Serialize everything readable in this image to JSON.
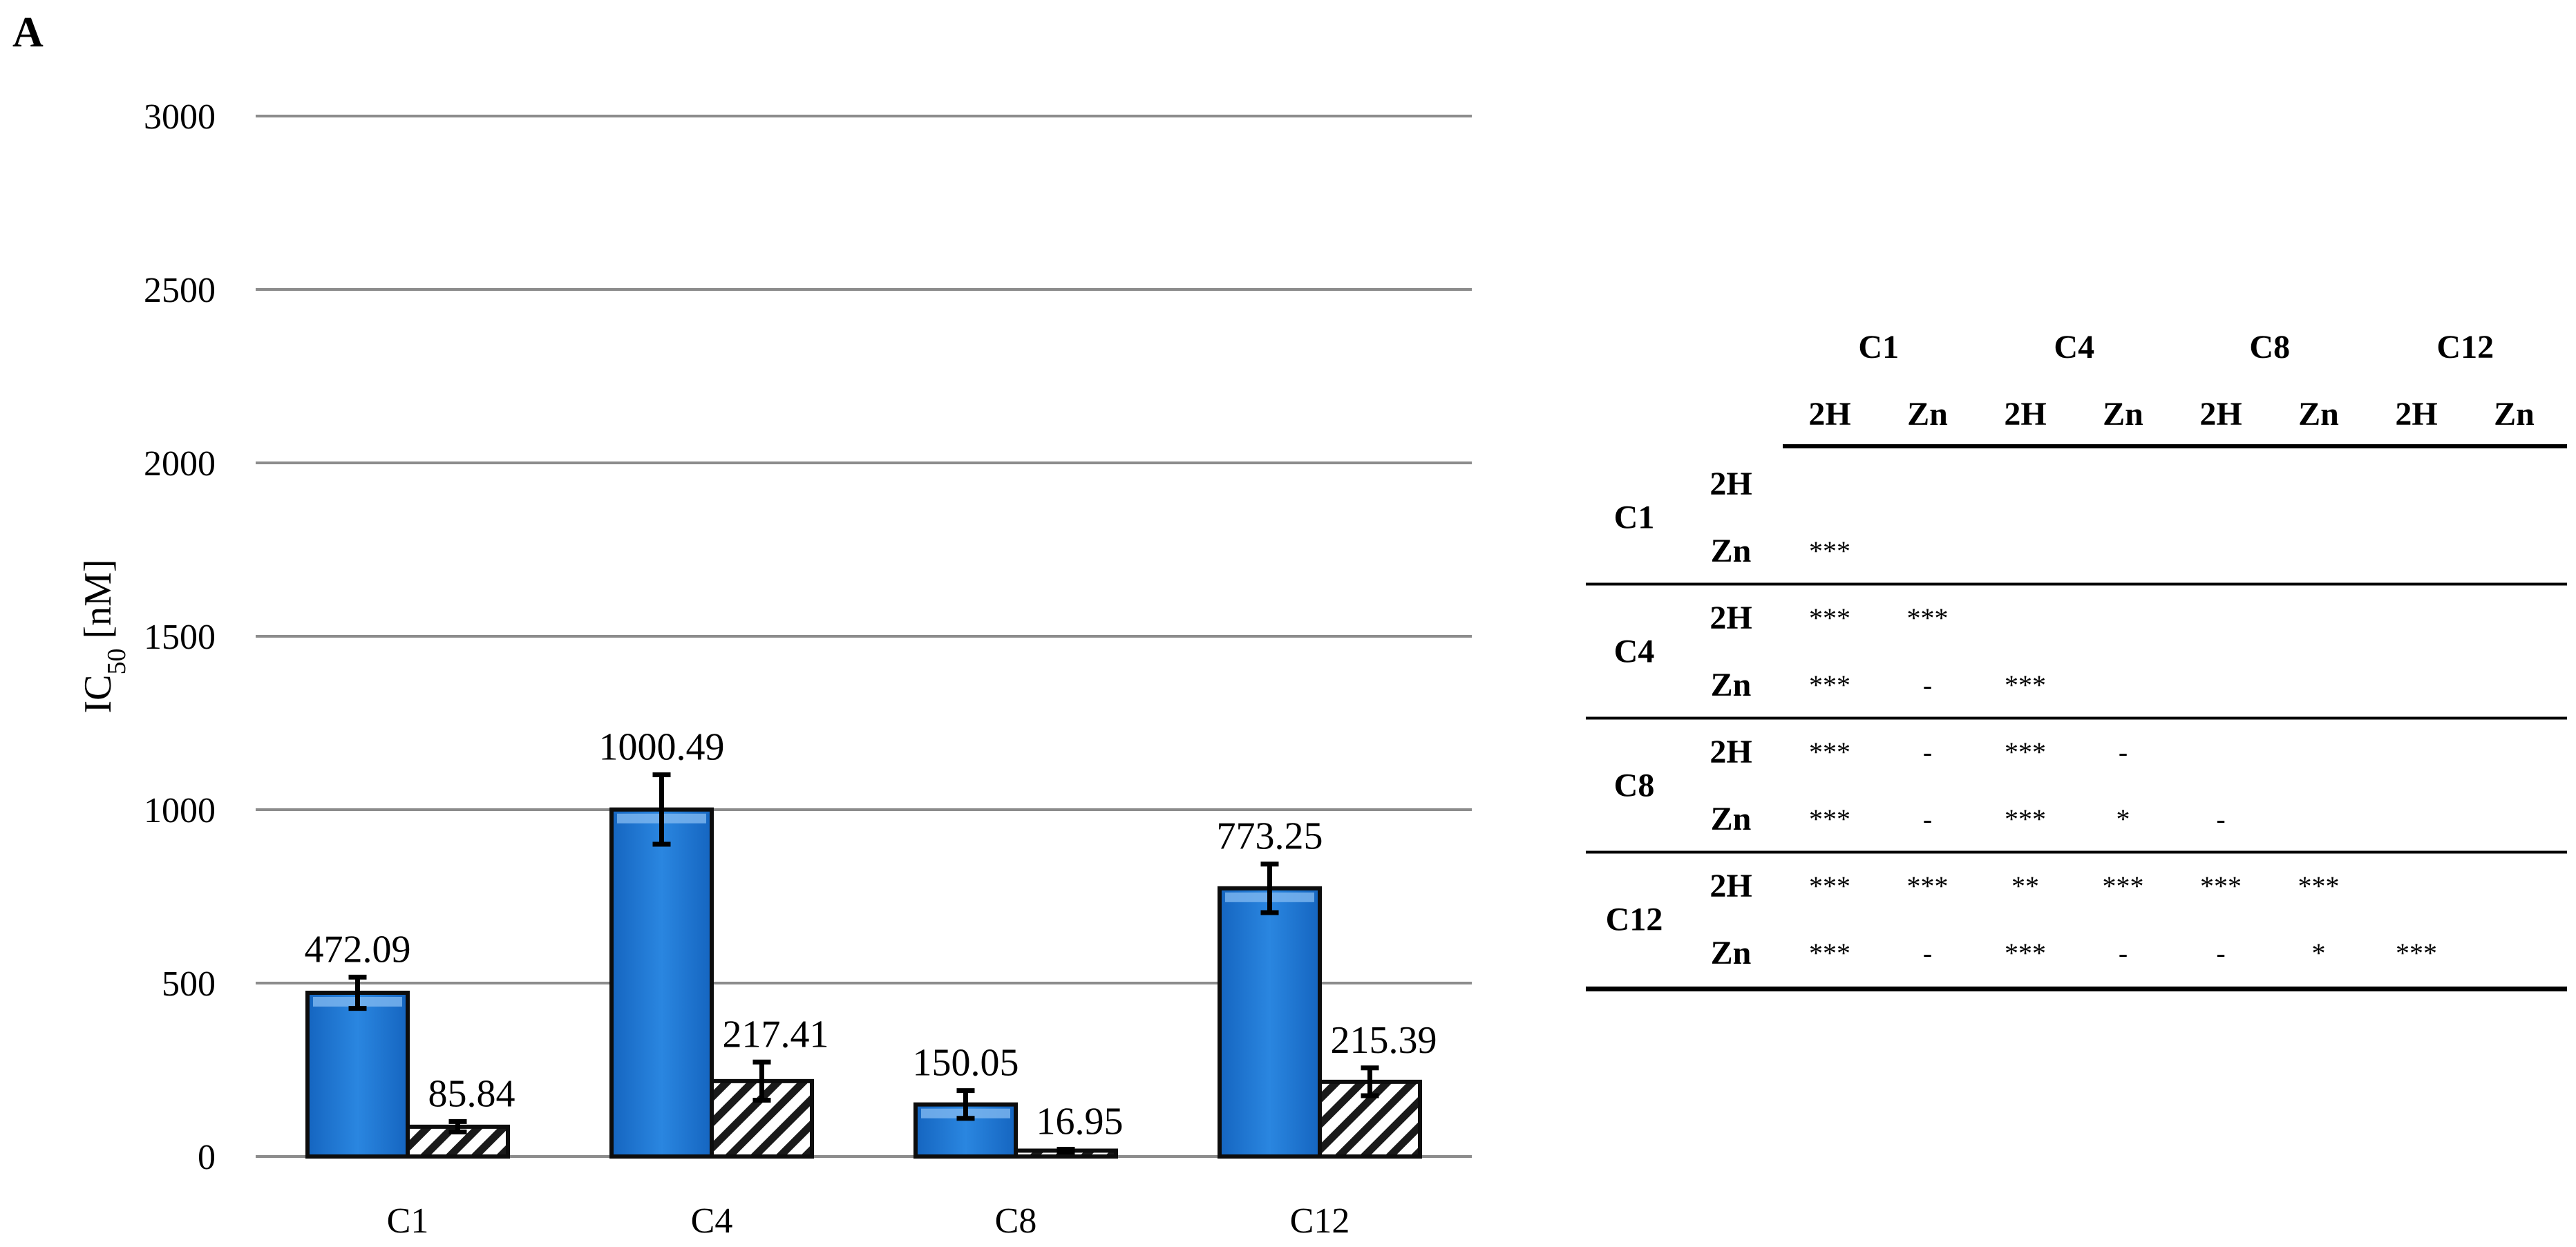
{
  "panel_label": "A",
  "chart_data": {
    "type": "bar",
    "categories": [
      "C1",
      "C4",
      "C8",
      "C12"
    ],
    "ylabel_main": "IC",
    "ylabel_sub": "50",
    "ylabel_unit": " [nM]",
    "ylim": [
      0,
      3000
    ],
    "yticks": [
      0,
      500,
      1000,
      1500,
      2000,
      2500,
      3000
    ],
    "grid": true,
    "series": [
      {
        "key": "2H",
        "fill": "solid",
        "color": "#1f78d1",
        "values": [
          472.09,
          1000.49,
          150.05,
          773.25
        ],
        "labels": [
          "472.09",
          "1000.49",
          "150.05",
          "773.25"
        ],
        "errors": [
          45,
          100,
          40,
          70
        ]
      },
      {
        "key": "Zn",
        "fill": "hatched",
        "color": "#1f78d1",
        "values": [
          85.84,
          217.41,
          16.95,
          215.39
        ],
        "labels": [
          "85.84",
          "217.41",
          "16.95",
          "215.39"
        ],
        "errors": [
          15,
          55,
          4,
          40
        ]
      }
    ]
  },
  "significance_table": {
    "groups": [
      "C1",
      "C4",
      "C8",
      "C12"
    ],
    "subs": [
      "2H",
      "Zn"
    ],
    "rows": [
      {
        "group": "C1",
        "sub": "2H",
        "cells": [
          "",
          "",
          "",
          "",
          "",
          "",
          "",
          ""
        ]
      },
      {
        "group": "",
        "sub": "Zn",
        "cells": [
          "***",
          "",
          "",
          "",
          "",
          "",
          "",
          ""
        ]
      },
      {
        "group": "C4",
        "sub": "2H",
        "cells": [
          "***",
          "***",
          "",
          "",
          "",
          "",
          "",
          ""
        ]
      },
      {
        "group": "",
        "sub": "Zn",
        "cells": [
          "***",
          "-",
          "***",
          "",
          "",
          "",
          "",
          ""
        ]
      },
      {
        "group": "C8",
        "sub": "2H",
        "cells": [
          "***",
          "-",
          "***",
          "-",
          "",
          "",
          "",
          ""
        ]
      },
      {
        "group": "",
        "sub": "Zn",
        "cells": [
          "***",
          "-",
          "***",
          "*",
          "-",
          "",
          "",
          ""
        ]
      },
      {
        "group": "C12",
        "sub": "2H",
        "cells": [
          "***",
          "***",
          "**",
          "***",
          "***",
          "***",
          "",
          ""
        ]
      },
      {
        "group": "",
        "sub": "Zn",
        "cells": [
          "***",
          "-",
          "***",
          "-",
          "-",
          "*",
          "***",
          ""
        ]
      }
    ]
  }
}
